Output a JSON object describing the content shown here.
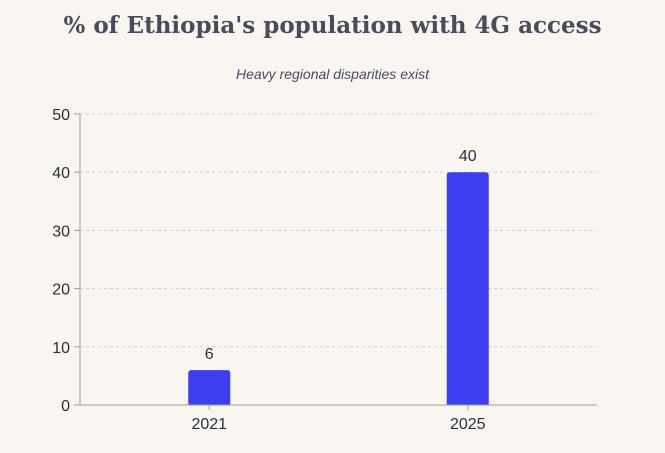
{
  "chart_data": {
    "type": "bar",
    "title": "% of Ethiopia's population with 4G access",
    "subtitle": "Heavy regional disparities exist",
    "categories": [
      "2021",
      "2025"
    ],
    "values": [
      6,
      40
    ],
    "xlabel": "",
    "ylabel": "",
    "ylim": [
      0,
      50
    ],
    "yticks": [
      "0",
      "10",
      "20",
      "30",
      "40",
      "50"
    ],
    "grid": true,
    "bar_color": "#3d3df2",
    "data_labels": [
      "6",
      "40"
    ]
  }
}
